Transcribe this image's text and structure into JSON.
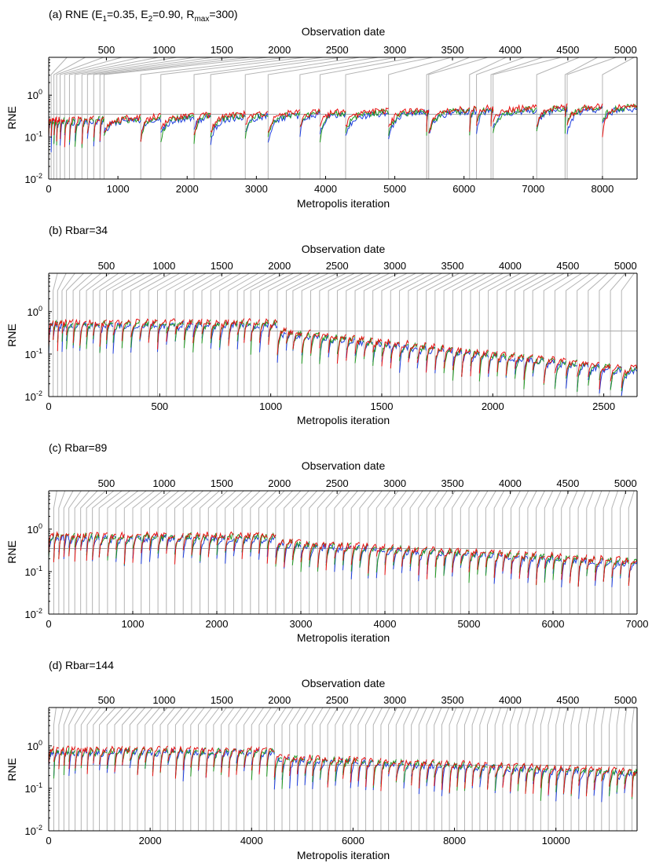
{
  "colors": {
    "blue": "#1f3fe0",
    "green": "#1f9a1f",
    "red": "#e81010",
    "connector": "#b4b4b4",
    "refline": "#a8a8a8"
  },
  "chart_data": [
    {
      "type": "line",
      "panel_label": "(a) RNE (E",
      "title_parts": {
        "e1_sub": "1",
        "e1_val": "=0.35, E",
        "e2_sub": "2",
        "e2_val": "=0.90, R",
        "rmax_sub": "max",
        "rmax_val": "=300)"
      },
      "title": "(a) RNE (E1=0.35, E2=0.90, Rmax=300)",
      "top_xlabel": "Observation date",
      "xlabel": "Metropolis iteration",
      "ylabel": "RNE",
      "xlim": [
        0,
        8500
      ],
      "xticks": [
        0,
        1000,
        2000,
        3000,
        4000,
        5000,
        6000,
        7000,
        8000
      ],
      "xtick_labels": [
        "0",
        "1000",
        "2000",
        "3000",
        "4000",
        "5000",
        "6000",
        "7000",
        "8000"
      ],
      "top_xlim": [
        0,
        5100
      ],
      "top_xticks": [
        500,
        1000,
        1500,
        2000,
        2500,
        3000,
        3500,
        4000,
        4500,
        5000
      ],
      "top_xtick_labels": [
        "500",
        "1000",
        "1500",
        "2000",
        "2500",
        "3000",
        "3500",
        "4000",
        "4500",
        "5000"
      ],
      "yscale": "log",
      "ylim": [
        0.01,
        8
      ],
      "yticks": [
        0.01,
        0.1,
        1
      ],
      "ytick_bases": [
        "10",
        "10",
        "10"
      ],
      "ytick_exps": [
        "-2",
        "-1",
        "0"
      ],
      "reference_line": 0.35,
      "refresh_iterations": [
        0,
        35,
        75,
        115,
        165,
        230,
        300,
        380,
        480,
        560,
        650,
        740,
        800,
        1330,
        1620,
        2100,
        2340,
        2840,
        3170,
        3630,
        3920,
        4290,
        4910,
        5460,
        5490,
        6080,
        6180,
        6390,
        6420,
        7050,
        7460,
        7490,
        8000
      ],
      "series": [
        {
          "name": "blue",
          "color": "#1f3fe0"
        },
        {
          "name": "green",
          "color": "#1f9a1f"
        },
        {
          "name": "red",
          "color": "#e81010"
        }
      ]
    },
    {
      "type": "line",
      "panel_label": "(b) Rbar=34",
      "title": "(b) Rbar=34",
      "top_xlabel": "Observation date",
      "xlabel": "Metropolis iteration",
      "ylabel": "RNE",
      "xlim": [
        0,
        2650
      ],
      "xticks": [
        0,
        500,
        1000,
        1500,
        2000,
        2500
      ],
      "xtick_labels": [
        "0",
        "500",
        "1000",
        "1500",
        "2000",
        "2500"
      ],
      "top_xlim": [
        0,
        5100
      ],
      "top_xticks": [
        500,
        1000,
        1500,
        2000,
        2500,
        3000,
        3500,
        4000,
        4500,
        5000
      ],
      "top_xtick_labels": [
        "500",
        "1000",
        "1500",
        "2000",
        "2500",
        "3000",
        "3500",
        "4000",
        "4500",
        "5000"
      ],
      "yscale": "log",
      "ylim": [
        0.01,
        8
      ],
      "yticks": [
        0.01,
        0.1,
        1
      ],
      "ytick_bases": [
        "10",
        "10",
        "10"
      ],
      "ytick_exps": [
        "-2",
        "-1",
        "0"
      ],
      "reference_line": 0.35,
      "refresh_iterations": [
        0,
        20,
        40,
        60,
        80,
        110,
        140,
        170,
        200,
        230,
        260,
        290,
        330,
        370,
        410,
        450,
        490,
        530,
        570,
        610,
        650,
        690,
        730,
        770,
        810,
        850,
        880,
        910,
        950,
        990,
        1030,
        1070,
        1100,
        1140,
        1180,
        1220,
        1260,
        1300,
        1340,
        1380,
        1420,
        1460,
        1500,
        1540,
        1580,
        1620,
        1660,
        1700,
        1740,
        1780,
        1820,
        1860,
        1900,
        1940,
        1980,
        2020,
        2060,
        2100,
        2140,
        2180,
        2230,
        2280,
        2330,
        2380,
        2430,
        2480,
        2530,
        2580
      ],
      "series": [
        {
          "name": "blue",
          "color": "#1f3fe0"
        },
        {
          "name": "green",
          "color": "#1f9a1f"
        },
        {
          "name": "red",
          "color": "#e81010"
        }
      ]
    },
    {
      "type": "line",
      "panel_label": "(c) Rbar=89",
      "title": "(c) Rbar=89",
      "top_xlabel": "Observation date",
      "xlabel": "Metropolis iteration",
      "ylabel": "RNE",
      "xlim": [
        0,
        7000
      ],
      "xticks": [
        0,
        1000,
        2000,
        3000,
        4000,
        5000,
        6000,
        7000
      ],
      "xtick_labels": [
        "0",
        "1000",
        "2000",
        "3000",
        "4000",
        "5000",
        "6000",
        "7000"
      ],
      "top_xlim": [
        0,
        5100
      ],
      "top_xticks": [
        500,
        1000,
        1500,
        2000,
        2500,
        3000,
        3500,
        4000,
        4500,
        5000
      ],
      "top_xtick_labels": [
        "500",
        "1000",
        "1500",
        "2000",
        "2500",
        "3000",
        "3500",
        "4000",
        "4500",
        "5000"
      ],
      "yscale": "log",
      "ylim": [
        0.01,
        8
      ],
      "yticks": [
        0.01,
        0.1,
        1
      ],
      "ytick_bases": [
        "10",
        "10",
        "10"
      ],
      "ytick_exps": [
        "-2",
        "-1",
        "0"
      ],
      "reference_line": 0.35,
      "refresh_iterations": [
        0,
        60,
        120,
        180,
        240,
        310,
        380,
        450,
        520,
        600,
        700,
        800,
        900,
        1000,
        1100,
        1200,
        1300,
        1400,
        1500,
        1600,
        1700,
        1800,
        1900,
        2000,
        2100,
        2200,
        2300,
        2400,
        2500,
        2600,
        2700,
        2800,
        2900,
        3000,
        3100,
        3200,
        3300,
        3400,
        3500,
        3600,
        3700,
        3800,
        3900,
        4000,
        4100,
        4200,
        4300,
        4400,
        4500,
        4600,
        4700,
        4800,
        4900,
        5000,
        5100,
        5200,
        5300,
        5400,
        5500,
        5600,
        5700,
        5800,
        5900,
        6000,
        6100,
        6200,
        6300,
        6400,
        6500,
        6600,
        6700,
        6800,
        6900
      ],
      "series": [
        {
          "name": "blue",
          "color": "#1f3fe0"
        },
        {
          "name": "green",
          "color": "#1f9a1f"
        },
        {
          "name": "red",
          "color": "#e81010"
        }
      ]
    },
    {
      "type": "line",
      "panel_label": "(d) Rbar=144",
      "title": "(d) Rbar=144",
      "top_xlabel": "Observation date",
      "xlabel": "Metropolis iteration",
      "ylabel": "RNE",
      "xlim": [
        0,
        11600
      ],
      "xticks": [
        0,
        2000,
        4000,
        6000,
        8000,
        10000
      ],
      "xtick_labels": [
        "0",
        "2000",
        "4000",
        "6000",
        "8000",
        "10000"
      ],
      "top_xlim": [
        0,
        5100
      ],
      "top_xticks": [
        500,
        1000,
        1500,
        2000,
        2500,
        3000,
        3500,
        4000,
        4500,
        5000
      ],
      "top_xtick_labels": [
        "500",
        "1000",
        "1500",
        "2000",
        "2500",
        "3000",
        "3500",
        "4000",
        "4500",
        "5000"
      ],
      "yscale": "log",
      "ylim": [
        0.01,
        8
      ],
      "yticks": [
        0.01,
        0.1,
        1
      ],
      "ytick_bases": [
        "10",
        "10",
        "10"
      ],
      "ytick_exps": [
        "-2",
        "-1",
        "0"
      ],
      "reference_line": 0.35,
      "refresh_iterations": [
        0,
        100,
        200,
        300,
        400,
        520,
        640,
        760,
        880,
        1000,
        1150,
        1300,
        1450,
        1600,
        1750,
        1900,
        2050,
        2200,
        2350,
        2500,
        2650,
        2800,
        2950,
        3100,
        3250,
        3400,
        3550,
        3700,
        3850,
        4000,
        4150,
        4300,
        4450,
        4600,
        4750,
        4900,
        5050,
        5200,
        5350,
        5500,
        5650,
        5800,
        5950,
        6100,
        6250,
        6400,
        6550,
        6700,
        6850,
        7000,
        7150,
        7300,
        7450,
        7600,
        7750,
        7900,
        8050,
        8200,
        8350,
        8500,
        8650,
        8800,
        8950,
        9100,
        9250,
        9400,
        9550,
        9700,
        9850,
        10000,
        10150,
        10300,
        10450,
        10600,
        10750,
        10900,
        11050,
        11200,
        11350,
        11500
      ],
      "series": [
        {
          "name": "blue",
          "color": "#1f3fe0"
        },
        {
          "name": "green",
          "color": "#1f9a1f"
        },
        {
          "name": "red",
          "color": "#e81010"
        }
      ]
    }
  ]
}
